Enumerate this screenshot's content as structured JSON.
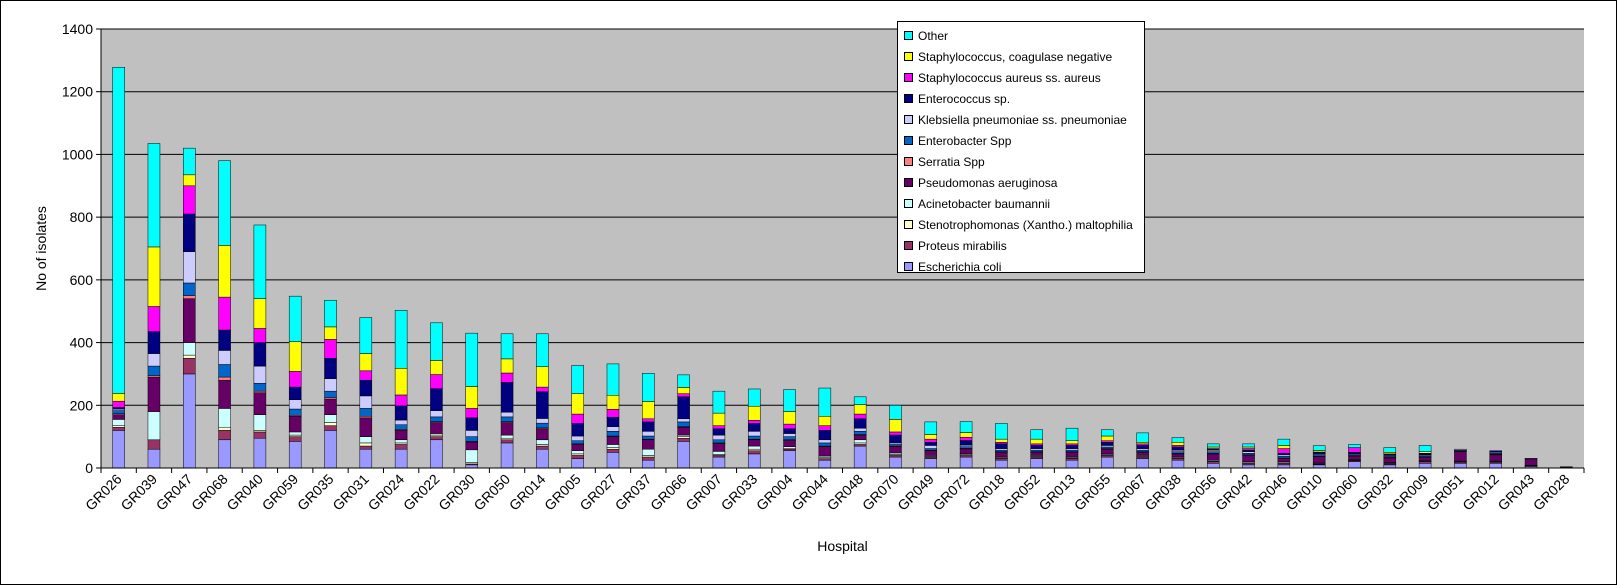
{
  "chart_data": {
    "type": "bar",
    "stacked": true,
    "title": "",
    "xlabel": "Hospital",
    "ylabel": "No of isolates",
    "ylim": [
      0,
      1400
    ],
    "yticks": [
      0,
      200,
      400,
      600,
      800,
      1000,
      1200,
      1400
    ],
    "grid": true,
    "legend_position": "top-right",
    "background_color": "#c0c0c0",
    "categories": [
      "GR026",
      "GR039",
      "GR047",
      "GR068",
      "GR040",
      "GR059",
      "GR035",
      "GR031",
      "GR024",
      "GR022",
      "GR030",
      "GR050",
      "GR014",
      "GR005",
      "GR027",
      "GR037",
      "GR066",
      "GR007",
      "GR033",
      "GR004",
      "GR044",
      "GR048",
      "GR070",
      "GR049",
      "GR072",
      "GR018",
      "GR052",
      "GR013",
      "GR055",
      "GR067",
      "GR038",
      "GR056",
      "GR042",
      "GR046",
      "GR010",
      "GR060",
      "GR032",
      "GR009",
      "GR051",
      "GR012",
      "GR043",
      "GR028"
    ],
    "series": [
      {
        "name": "Escherichia coli",
        "color": "#9999ff",
        "values": [
          120,
          60,
          300,
          90,
          95,
          85,
          120,
          60,
          60,
          90,
          10,
          80,
          60,
          30,
          50,
          25,
          85,
          35,
          45,
          55,
          25,
          70,
          35,
          30,
          35,
          25,
          30,
          25,
          35,
          30,
          25,
          15,
          10,
          10,
          10,
          20,
          10,
          15,
          15,
          15,
          5,
          2
        ]
      },
      {
        "name": "Proteus mirabilis",
        "color": "#993366",
        "values": [
          10,
          30,
          50,
          30,
          20,
          15,
          15,
          10,
          15,
          10,
          3,
          10,
          10,
          10,
          10,
          10,
          10,
          5,
          10,
          5,
          5,
          5,
          5,
          5,
          5,
          5,
          5,
          5,
          5,
          5,
          5,
          5,
          5,
          5,
          2,
          3,
          3,
          5,
          3,
          3,
          2,
          0
        ]
      },
      {
        "name": "Stenotrophomonas (Xantho.) maltophilia",
        "color": "#ffffcc",
        "values": [
          5,
          0,
          10,
          10,
          5,
          5,
          10,
          10,
          5,
          5,
          5,
          5,
          5,
          5,
          5,
          5,
          5,
          3,
          5,
          3,
          3,
          5,
          3,
          2,
          3,
          2,
          2,
          2,
          2,
          2,
          2,
          2,
          2,
          2,
          2,
          2,
          2,
          2,
          2,
          2,
          1,
          0
        ]
      },
      {
        "name": "Acinetobacter baumannii",
        "color": "#ccffff",
        "values": [
          20,
          90,
          40,
          60,
          50,
          10,
          25,
          20,
          10,
          5,
          40,
          10,
          15,
          10,
          10,
          20,
          5,
          10,
          10,
          5,
          5,
          10,
          5,
          3,
          3,
          3,
          3,
          3,
          3,
          3,
          3,
          3,
          3,
          3,
          2,
          2,
          2,
          2,
          2,
          2,
          1,
          0
        ]
      },
      {
        "name": "Pseudomonas aeruginosa",
        "color": "#660066",
        "values": [
          15,
          110,
          140,
          90,
          70,
          50,
          50,
          60,
          30,
          35,
          25,
          40,
          35,
          20,
          25,
          30,
          25,
          25,
          20,
          20,
          30,
          15,
          20,
          15,
          15,
          15,
          10,
          15,
          15,
          10,
          10,
          20,
          20,
          10,
          20,
          10,
          15,
          10,
          30,
          20,
          20,
          2
        ]
      },
      {
        "name": "Serratia Spp",
        "color": "#ff8080",
        "values": [
          3,
          5,
          10,
          10,
          5,
          3,
          5,
          5,
          3,
          3,
          2,
          3,
          3,
          2,
          2,
          2,
          2,
          2,
          2,
          2,
          2,
          2,
          2,
          2,
          2,
          2,
          2,
          2,
          2,
          2,
          2,
          2,
          2,
          2,
          2,
          2,
          2,
          2,
          2,
          2,
          0,
          0
        ]
      },
      {
        "name": "Enterobacter Spp",
        "color": "#0066cc",
        "values": [
          10,
          30,
          40,
          40,
          25,
          20,
          20,
          25,
          15,
          15,
          15,
          15,
          15,
          10,
          15,
          10,
          15,
          10,
          10,
          10,
          10,
          10,
          5,
          5,
          5,
          5,
          5,
          5,
          5,
          5,
          5,
          5,
          5,
          5,
          5,
          3,
          3,
          3,
          3,
          3,
          0,
          0
        ]
      },
      {
        "name": "Klebsiella pneumoniae ss. pneumoniae",
        "color": "#ccccff",
        "values": [
          5,
          40,
          100,
          45,
          55,
          30,
          40,
          40,
          15,
          20,
          20,
          15,
          15,
          15,
          15,
          15,
          10,
          15,
          15,
          10,
          10,
          10,
          5,
          10,
          5,
          5,
          5,
          5,
          5,
          5,
          5,
          5,
          5,
          5,
          3,
          3,
          3,
          3,
          3,
          3,
          2,
          0
        ]
      },
      {
        "name": "Enterococcus sp.",
        "color": "#000080",
        "values": [
          5,
          70,
          120,
          65,
          75,
          40,
          65,
          50,
          45,
          70,
          40,
          95,
          85,
          40,
          30,
          30,
          70,
          20,
          25,
          15,
          30,
          30,
          25,
          10,
          15,
          15,
          10,
          10,
          10,
          10,
          10,
          5,
          5,
          5,
          5,
          5,
          5,
          5,
          0,
          5,
          0,
          0
        ]
      },
      {
        "name": "Staphylococcus aureus ss. aureus",
        "color": "#ff00ff",
        "values": [
          20,
          80,
          90,
          105,
          45,
          50,
          60,
          30,
          35,
          45,
          30,
          30,
          15,
          30,
          25,
          10,
          10,
          10,
          10,
          15,
          15,
          15,
          10,
          10,
          10,
          5,
          5,
          5,
          5,
          5,
          5,
          0,
          5,
          15,
          0,
          15,
          0,
          0,
          0,
          0,
          0,
          0
        ]
      },
      {
        "name": "Staphylococcus, coagulase negative",
        "color": "#ffff00",
        "values": [
          25,
          190,
          35,
          165,
          95,
          95,
          40,
          55,
          85,
          45,
          70,
          45,
          65,
          65,
          45,
          55,
          20,
          40,
          45,
          40,
          30,
          30,
          40,
          15,
          15,
          10,
          15,
          10,
          15,
          5,
          10,
          5,
          5,
          10,
          5,
          0,
          5,
          5,
          0,
          0,
          0,
          0
        ]
      },
      {
        "name": "Other",
        "color": "#00ffff",
        "values": [
          1040,
          330,
          85,
          270,
          235,
          145,
          85,
          115,
          185,
          120,
          170,
          80,
          105,
          90,
          100,
          90,
          40,
          70,
          55,
          70,
          90,
          25,
          45,
          40,
          35,
          50,
          30,
          40,
          20,
          30,
          15,
          10,
          10,
          20,
          15,
          10,
          15,
          20,
          0,
          0,
          0,
          0
        ]
      }
    ]
  }
}
